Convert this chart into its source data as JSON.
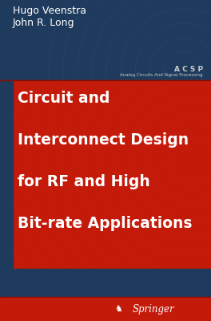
{
  "fig_width": 2.64,
  "fig_height": 4.0,
  "dpi": 100,
  "dark_blue": "#1e3a5c",
  "red_color": "#c41a0a",
  "red_dark": "#a01408",
  "author1": "Hugo Veenstra",
  "author2": "John R. Long",
  "author_color": "#ffffff",
  "author_fontsize": 9.0,
  "series_abbr": "A C S P",
  "series_full": "Analog Circuits And Signal Processing",
  "series_color": "#cccccc",
  "series_abbr_fontsize": 6.5,
  "series_full_fontsize": 4.0,
  "title_line1": "Circuit and",
  "title_line2": "Interconnect Design",
  "title_line3": "for RF and High",
  "title_line4": "Bit-rate Applications",
  "title_color": "#ffffff",
  "title_fontsize": 13.5,
  "publisher": "Springer",
  "publisher_color": "#ffffff",
  "publisher_fontsize": 8.5
}
